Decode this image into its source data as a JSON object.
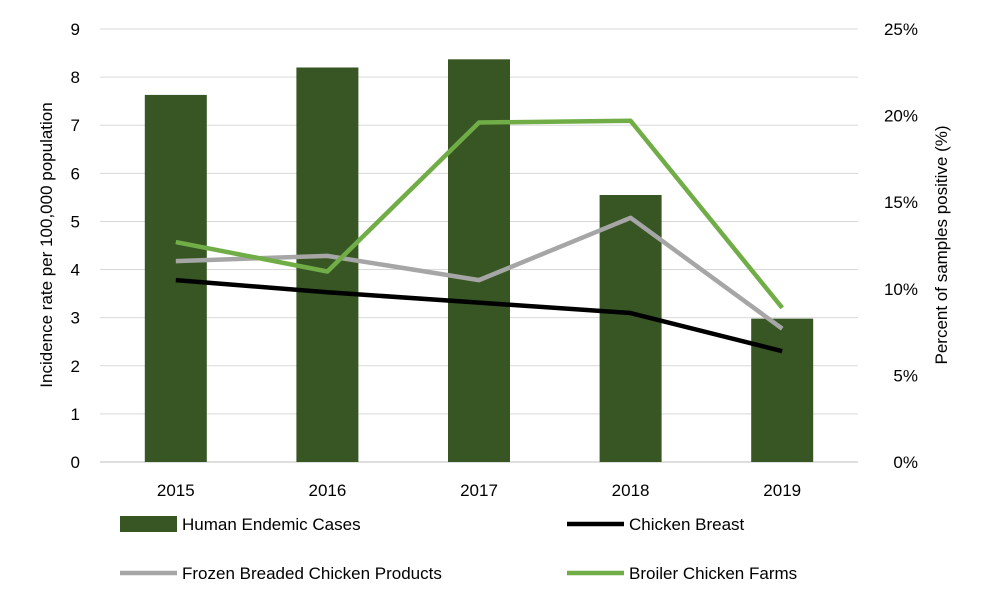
{
  "chart_data": {
    "type": "bar+line",
    "title": "",
    "categories": [
      "2015",
      "2016",
      "2017",
      "2018",
      "2019"
    ],
    "y_left": {
      "label": "Incidence rate per 100,000 population",
      "lim": [
        0,
        9
      ],
      "ticks": [
        "0",
        "1",
        "2",
        "3",
        "4",
        "5",
        "6",
        "7",
        "8",
        "9"
      ]
    },
    "y_right": {
      "label": "Percent of samples positive (%)",
      "lim": [
        0,
        25
      ],
      "ticks": [
        "0%",
        "5%",
        "10%",
        "15%",
        "20%",
        "25%"
      ]
    },
    "grid": true,
    "legend_position": "bottom",
    "bars": {
      "name": "Human Endemic Cases",
      "axis": "left",
      "color": "#375623",
      "values": [
        7.63,
        8.2,
        8.37,
        5.55,
        2.98
      ]
    },
    "series": [
      {
        "name": "Chicken Breast",
        "axis": "right",
        "color": "#000000",
        "values": [
          10.5,
          9.8,
          9.2,
          8.6,
          6.4
        ]
      },
      {
        "name": "Frozen Breaded Chicken Products",
        "axis": "right",
        "color": "#A6A6A6",
        "values": [
          11.6,
          11.9,
          10.5,
          14.1,
          7.7
        ]
      },
      {
        "name": "Broiler Chicken Farms",
        "axis": "right",
        "color": "#70AD47",
        "values": [
          12.7,
          11.0,
          19.6,
          19.7,
          8.9
        ]
      }
    ]
  }
}
